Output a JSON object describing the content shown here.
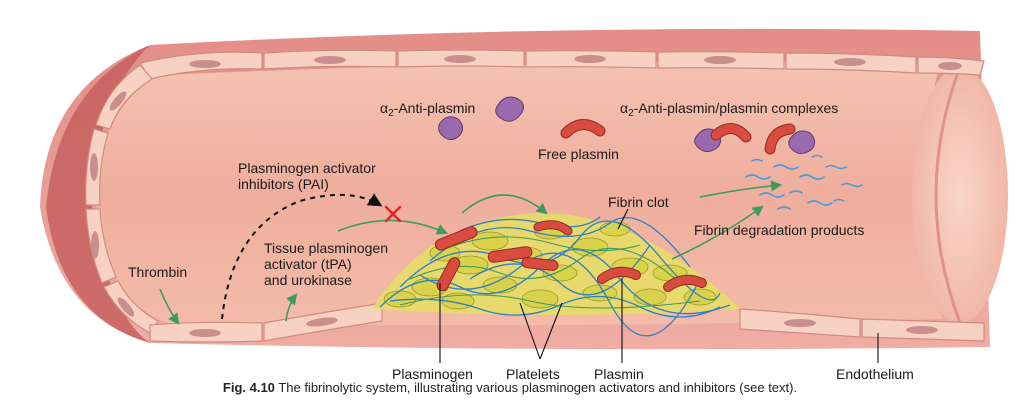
{
  "labels": {
    "antiplasmin_prefix": "α",
    "antiplasmin_sub": "2",
    "antiplasmin_rest": "-Anti-plasmin",
    "complex_prefix": "α",
    "complex_sub": "2",
    "complex_rest": "-Anti-plasmin/plasmin complexes",
    "free_plasmin": "Free plasmin",
    "pai_line1": "Plasminogen activator",
    "pai_line2": "inhibitors (PAI)",
    "fibrin_clot": "Fibrin clot",
    "fdp": "Fibrin degradation products",
    "tpa_line1": "Tissue plasminogen",
    "tpa_line2": "activator (tPA)",
    "tpa_line3": "and urokinase",
    "thrombin": "Thrombin",
    "plasminogen": "Plasminogen",
    "platelets": "Platelets",
    "plasmin": "Plasmin",
    "endothelium": "Endothelium"
  },
  "caption": {
    "fig_label": "Fig. 4.10",
    "text": "The fibrinolytic system, illustrating various plasminogen activators and inhibitors (see text)."
  },
  "colors": {
    "vessel_wall": "#e9a49a",
    "vessel_dark": "#c76a66",
    "lumen": "#f2b7a6",
    "endothelial_cell": "#f7d2c2",
    "nucleus": "#c98e8e",
    "platelet": "#d9d24a",
    "fibrin": "#2e7fc4",
    "plasmin": "#d94b3f",
    "antiplasmin": "#9a6aae",
    "arrow_green": "#3f9a5e",
    "inhibit_red": "#e0262b"
  }
}
